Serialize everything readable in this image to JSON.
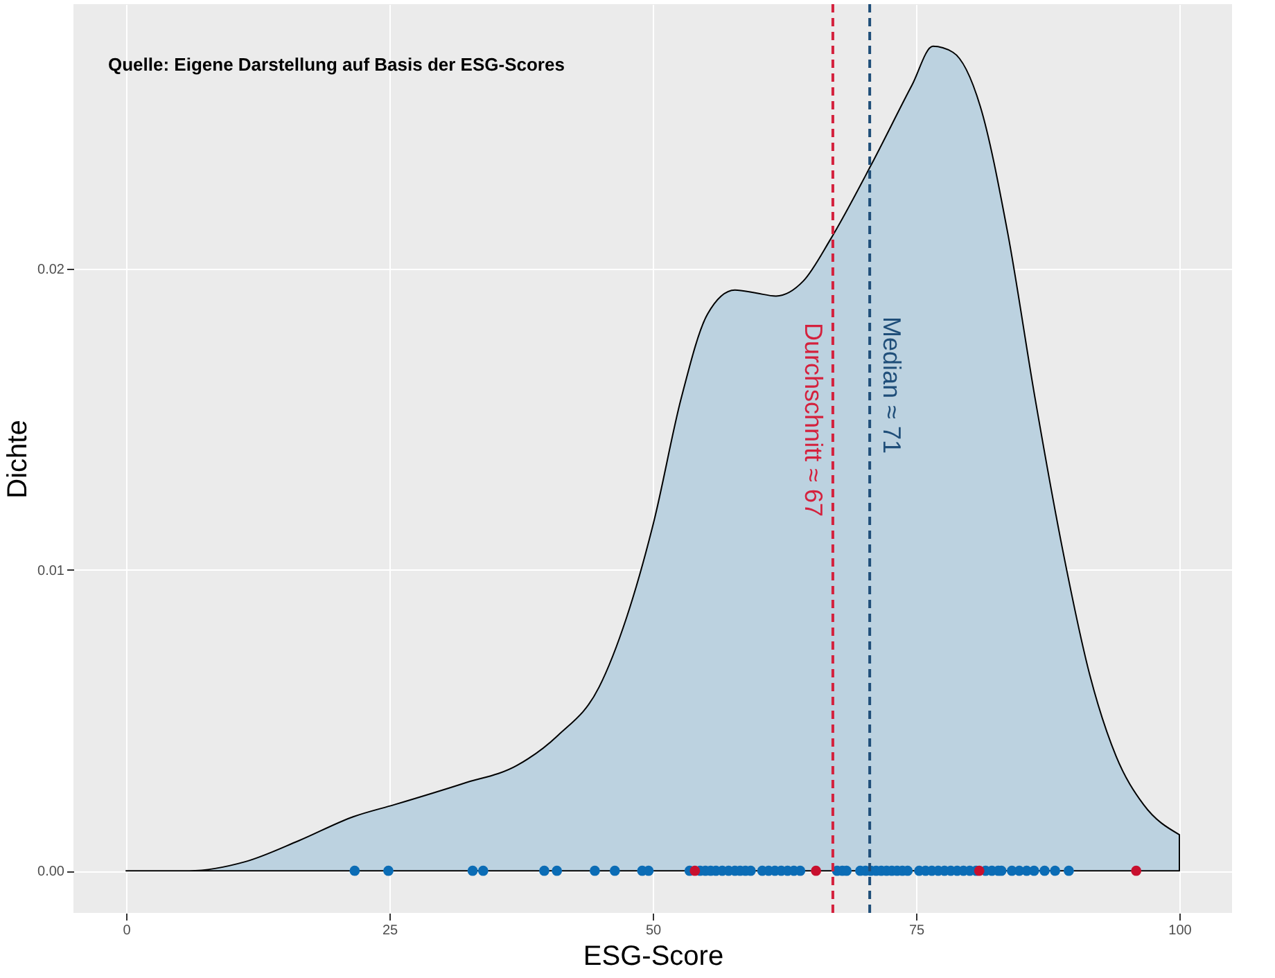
{
  "chart_data": {
    "type": "area",
    "xlabel": "ESG-Score",
    "ylabel": "Dichte",
    "annotations": [
      "Quelle: Eigene Darstellung auf Basis der ESG-Scores"
    ],
    "xlim": [
      -5,
      105
    ],
    "xticks": [
      0,
      25,
      50,
      75,
      100
    ],
    "ylim": [
      -0.0014,
      0.0288
    ],
    "yticks": [
      {
        "value": 0,
        "label": "0.00"
      },
      {
        "value": 0.01,
        "label": "0.01"
      },
      {
        "value": 0.02,
        "label": "0.02"
      }
    ],
    "grid": true,
    "series": [
      {
        "color": "#bcd2e0",
        "x": [
          0,
          6,
          11.3,
          16.4,
          21.6,
          25.5,
          32,
          37.1,
          41,
          44.9,
          47.5,
          50.1,
          52.7,
          55.2,
          57.8,
          59.8,
          61.7,
          64.3,
          66.9,
          70.8,
          74.6,
          76.6,
          78.5,
          81.1,
          83.7,
          86.3,
          88.9,
          91.5,
          94,
          96.6,
          100
        ],
        "values": [
          0,
          0,
          0.0003,
          0.001,
          0.0018,
          0.0022,
          0.0029,
          0.0035,
          0.0045,
          0.0061,
          0.0084,
          0.0116,
          0.0157,
          0.0185,
          0.0193,
          0.0192,
          0.0191,
          0.0196,
          0.021,
          0.0235,
          0.0261,
          0.0274,
          0.0272,
          0.0254,
          0.0212,
          0.0157,
          0.0107,
          0.0065,
          0.0038,
          0.0022,
          0.0012
        ]
      },
      {
        "type": "scatter",
        "color": "#0b6cb5",
        "marker": "circle",
        "x": [
          21.7,
          24.9,
          32.9,
          33.9,
          39.7,
          40.9,
          44.5,
          46.4,
          49,
          49.6,
          53.5,
          54.5,
          55,
          55.5,
          56,
          56.6,
          57.2,
          57.8,
          58.3,
          58.8,
          59.3,
          60.4,
          61,
          61.6,
          62.2,
          62.8,
          63.4,
          64,
          67.5,
          68,
          68.4,
          69.7,
          70.2,
          70.7,
          71.2,
          71.7,
          72.2,
          72.7,
          73.2,
          73.7,
          74.2,
          75.3,
          75.9,
          76.5,
          77.1,
          77.7,
          78.3,
          78.9,
          79.5,
          80.1,
          80.7,
          81.6,
          82.2,
          82.8,
          83.1,
          84.1,
          84.8,
          85.5,
          86.2,
          87.2,
          88.2,
          89.5
        ],
        "values": [
          0,
          0,
          0,
          0,
          0,
          0,
          0,
          0,
          0,
          0,
          0,
          0,
          0,
          0,
          0,
          0,
          0,
          0,
          0,
          0,
          0,
          0,
          0,
          0,
          0,
          0,
          0,
          0,
          0,
          0,
          0,
          0,
          0,
          0,
          0,
          0,
          0,
          0,
          0,
          0,
          0,
          0,
          0,
          0,
          0,
          0,
          0,
          0,
          0,
          0,
          0,
          0,
          0,
          0,
          0,
          0,
          0,
          0,
          0,
          0,
          0,
          0
        ]
      },
      {
        "type": "scatter",
        "color": "#c8102e",
        "marker": "circle",
        "x": [
          54.0,
          65.5,
          81.0,
          95.9
        ],
        "values": [
          0,
          0,
          0,
          0
        ]
      }
    ],
    "ref_lines": [
      {
        "axis": "x",
        "value": 67.1,
        "label": "Durchschnitt ≈ 67",
        "color": "#d4213d",
        "line_style": "dashed"
      },
      {
        "axis": "x",
        "value": 70.6,
        "label": "Median ≈ 71",
        "color": "#1f4e79",
        "line_style": "dashed"
      }
    ]
  }
}
